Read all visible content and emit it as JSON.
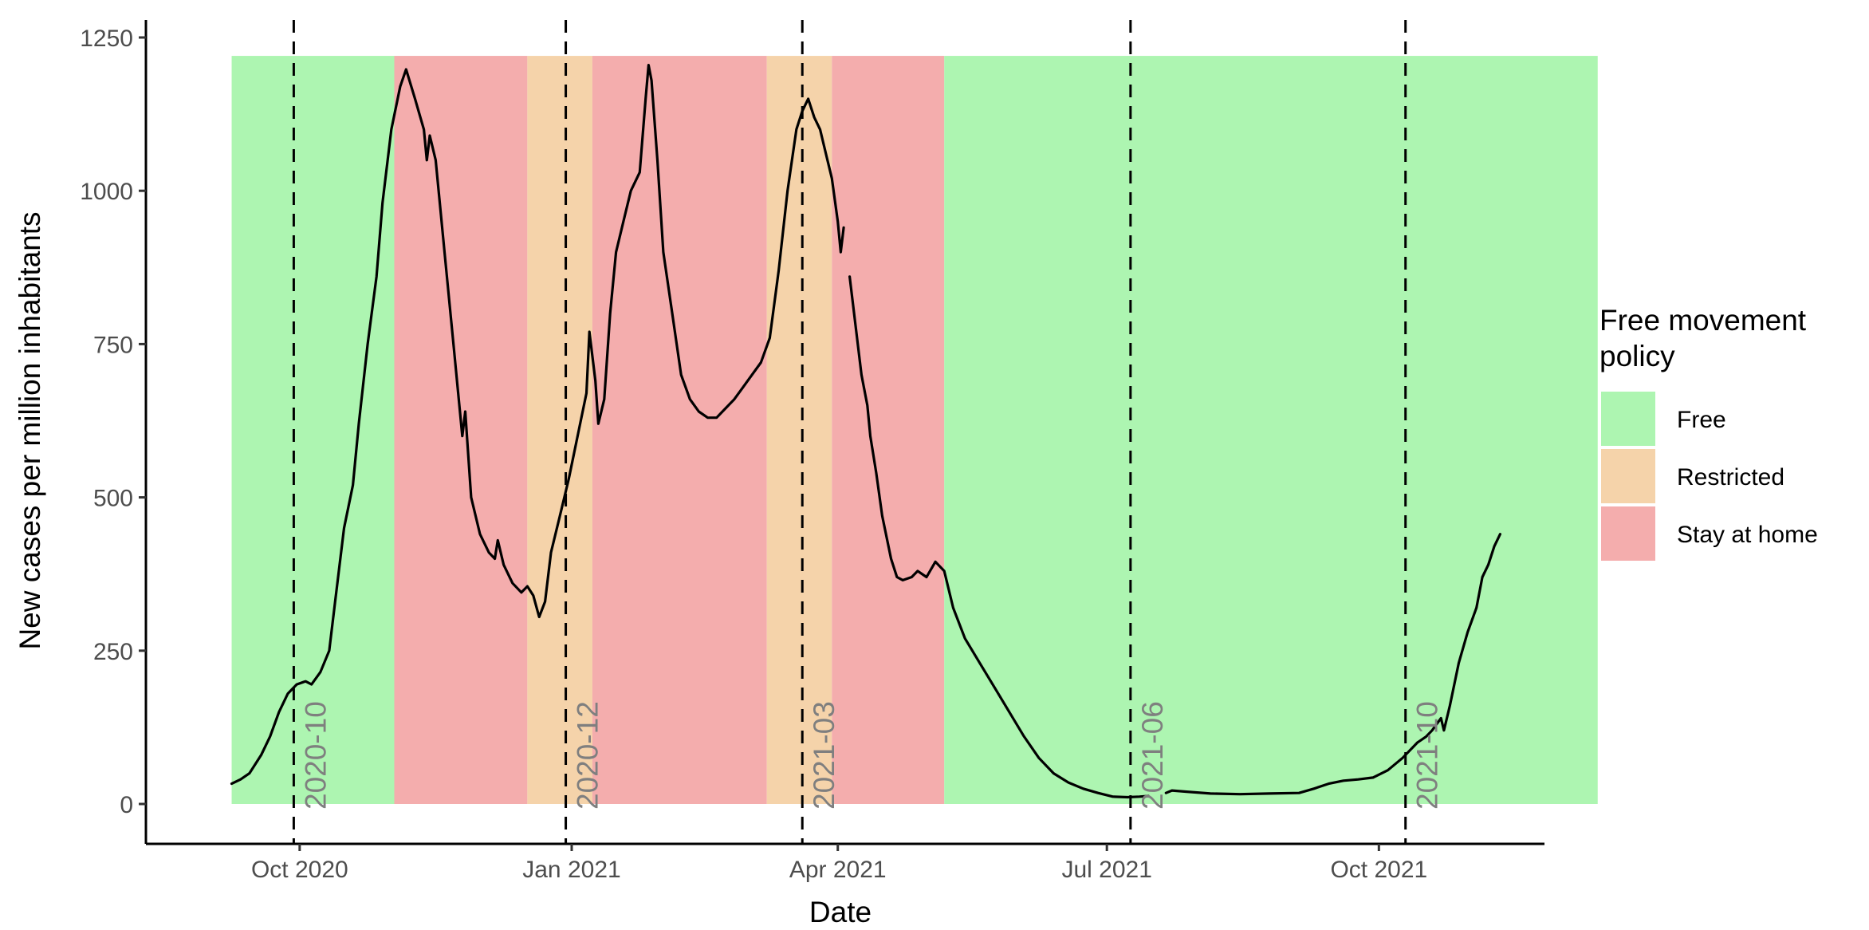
{
  "chart_data": {
    "type": "line",
    "title": "",
    "xlabel": "Date",
    "ylabel": "New cases per million inhabitants",
    "ylim": [
      0,
      1250
    ],
    "xlim": [
      "2020-08-10",
      "2021-11-26"
    ],
    "yticks": [
      0,
      250,
      500,
      750,
      1000,
      1250
    ],
    "xticks": [
      {
        "date": "2020-10-01",
        "label": "Oct 2020"
      },
      {
        "date": "2021-01-01",
        "label": "Jan 2021"
      },
      {
        "date": "2021-04-01",
        "label": "Apr 2021"
      },
      {
        "date": "2021-07-01",
        "label": "Jul 2021"
      },
      {
        "date": "2021-10-01",
        "label": "Oct 2021"
      }
    ],
    "grid": false,
    "legend": {
      "title": "Free movement policy",
      "position": "right",
      "entries": [
        {
          "label": "Free",
          "color": "#adf5b1"
        },
        {
          "label": "Restricted",
          "color": "#f5d3aa"
        },
        {
          "label": "Stay at home",
          "color": "#f4adad"
        }
      ]
    },
    "policy_periods": [
      {
        "start": "2020-09-08",
        "end": "2020-11-02",
        "policy": "Free"
      },
      {
        "start": "2020-11-02",
        "end": "2020-12-17",
        "policy": "Stay at home"
      },
      {
        "start": "2020-12-17",
        "end": "2021-01-08",
        "policy": "Restricted"
      },
      {
        "start": "2021-01-08",
        "end": "2021-03-08",
        "policy": "Stay at home"
      },
      {
        "start": "2021-03-08",
        "end": "2021-03-30",
        "policy": "Restricted"
      },
      {
        "start": "2021-03-30",
        "end": "2021-05-07",
        "policy": "Stay at home"
      },
      {
        "start": "2021-05-07",
        "end": "2021-12-14",
        "policy": "Free"
      }
    ],
    "band_ymax": 1220,
    "vertical_lines": [
      {
        "date": "2020-09-29",
        "label": "2020-10"
      },
      {
        "date": "2020-12-30",
        "label": "2020-12"
      },
      {
        "date": "2021-03-20",
        "label": "2021-03"
      },
      {
        "date": "2021-07-09",
        "label": "2021-06"
      },
      {
        "date": "2021-10-10",
        "label": "2021-10"
      }
    ],
    "series": [
      {
        "segments": [
          [
            [
              "2020-09-08",
              33
            ],
            [
              "2020-09-11",
              40
            ],
            [
              "2020-09-14",
              50
            ],
            [
              "2020-09-18",
              80
            ],
            [
              "2020-09-21",
              110
            ],
            [
              "2020-09-24",
              150
            ],
            [
              "2020-09-27",
              180
            ],
            [
              "2020-09-30",
              195
            ],
            [
              "2020-10-03",
              200
            ],
            [
              "2020-10-05",
              195
            ],
            [
              "2020-10-08",
              215
            ],
            [
              "2020-10-11",
              250
            ],
            [
              "2020-10-13",
              330
            ],
            [
              "2020-10-16",
              450
            ],
            [
              "2020-10-19",
              520
            ],
            [
              "2020-10-21",
              620
            ],
            [
              "2020-10-24",
              750
            ],
            [
              "2020-10-27",
              860
            ],
            [
              "2020-10-29",
              980
            ],
            [
              "2020-11-01",
              1100
            ],
            [
              "2020-11-04",
              1170
            ],
            [
              "2020-11-06",
              1198
            ],
            [
              "2020-11-09",
              1150
            ],
            [
              "2020-11-12",
              1100
            ],
            [
              "2020-11-13",
              1050
            ],
            [
              "2020-11-14",
              1090
            ],
            [
              "2020-11-16",
              1050
            ],
            [
              "2020-11-19",
              900
            ],
            [
              "2020-11-22",
              750
            ],
            [
              "2020-11-24",
              650
            ],
            [
              "2020-11-25",
              600
            ],
            [
              "2020-11-26",
              640
            ],
            [
              "2020-11-28",
              500
            ],
            [
              "2020-12-01",
              440
            ],
            [
              "2020-12-04",
              410
            ],
            [
              "2020-12-06",
              400
            ],
            [
              "2020-12-07",
              430
            ],
            [
              "2020-12-09",
              390
            ],
            [
              "2020-12-12",
              360
            ],
            [
              "2020-12-15",
              345
            ],
            [
              "2020-12-17",
              355
            ],
            [
              "2020-12-19",
              340
            ],
            [
              "2020-12-21",
              305
            ],
            [
              "2020-12-23",
              330
            ],
            [
              "2020-12-25",
              410
            ],
            [
              "2020-12-28",
              470
            ],
            [
              "2020-12-31",
              530
            ],
            [
              "2021-01-03",
              600
            ],
            [
              "2021-01-06",
              670
            ],
            [
              "2021-01-07",
              770
            ],
            [
              "2021-01-09",
              690
            ],
            [
              "2021-01-10",
              620
            ],
            [
              "2021-01-12",
              660
            ],
            [
              "2021-01-14",
              800
            ],
            [
              "2021-01-16",
              900
            ],
            [
              "2021-01-19",
              960
            ],
            [
              "2021-01-21",
              1000
            ],
            [
              "2021-01-24",
              1030
            ],
            [
              "2021-01-26",
              1150
            ],
            [
              "2021-01-27",
              1205
            ],
            [
              "2021-01-28",
              1180
            ],
            [
              "2021-01-30",
              1050
            ],
            [
              "2021-02-01",
              900
            ],
            [
              "2021-02-04",
              800
            ],
            [
              "2021-02-07",
              700
            ],
            [
              "2021-02-10",
              660
            ],
            [
              "2021-02-13",
              640
            ],
            [
              "2021-02-16",
              630
            ],
            [
              "2021-02-19",
              630
            ],
            [
              "2021-02-22",
              645
            ],
            [
              "2021-02-25",
              660
            ],
            [
              "2021-02-28",
              680
            ],
            [
              "2021-03-03",
              700
            ],
            [
              "2021-03-06",
              720
            ],
            [
              "2021-03-09",
              760
            ],
            [
              "2021-03-12",
              870
            ],
            [
              "2021-03-15",
              1000
            ],
            [
              "2021-03-18",
              1100
            ],
            [
              "2021-03-20",
              1130
            ],
            [
              "2021-03-22",
              1150
            ],
            [
              "2021-03-24",
              1120
            ],
            [
              "2021-03-26",
              1100
            ],
            [
              "2021-03-28",
              1060
            ],
            [
              "2021-03-30",
              1020
            ],
            [
              "2021-04-01",
              950
            ],
            [
              "2021-04-02",
              900
            ],
            [
              "2021-04-03",
              940
            ]
          ],
          [
            [
              "2021-04-05",
              860
            ],
            [
              "2021-04-07",
              780
            ],
            [
              "2021-04-09",
              700
            ],
            [
              "2021-04-11",
              650
            ],
            [
              "2021-04-12",
              600
            ],
            [
              "2021-04-14",
              540
            ],
            [
              "2021-04-16",
              470
            ],
            [
              "2021-04-19",
              400
            ],
            [
              "2021-04-21",
              370
            ],
            [
              "2021-04-23",
              365
            ],
            [
              "2021-04-26",
              370
            ],
            [
              "2021-04-28",
              380
            ],
            [
              "2021-05-01",
              370
            ],
            [
              "2021-05-04",
              395
            ],
            [
              "2021-05-07",
              380
            ],
            [
              "2021-05-10",
              320
            ],
            [
              "2021-05-14",
              270
            ],
            [
              "2021-05-19",
              230
            ],
            [
              "2021-05-24",
              190
            ],
            [
              "2021-05-29",
              150
            ],
            [
              "2021-06-03",
              110
            ],
            [
              "2021-06-08",
              75
            ],
            [
              "2021-06-13",
              50
            ],
            [
              "2021-06-18",
              35
            ],
            [
              "2021-06-23",
              25
            ],
            [
              "2021-06-28",
              18
            ],
            [
              "2021-07-03",
              12
            ],
            [
              "2021-07-08",
              11
            ],
            [
              "2021-07-12",
              12
            ],
            [
              "2021-07-15",
              13
            ]
          ],
          [
            [
              "2021-07-21",
              18
            ],
            [
              "2021-07-23",
              22
            ],
            [
              "2021-07-28",
              20
            ],
            [
              "2021-08-05",
              17
            ],
            [
              "2021-08-15",
              16
            ],
            [
              "2021-08-25",
              17
            ],
            [
              "2021-09-04",
              18
            ],
            [
              "2021-09-09",
              25
            ],
            [
              "2021-09-14",
              33
            ],
            [
              "2021-09-19",
              38
            ],
            [
              "2021-09-24",
              40
            ],
            [
              "2021-09-29",
              43
            ],
            [
              "2021-10-04",
              55
            ],
            [
              "2021-10-09",
              75
            ],
            [
              "2021-10-14",
              100
            ],
            [
              "2021-10-17",
              110
            ],
            [
              "2021-10-19",
              120
            ],
            [
              "2021-10-22",
              140
            ],
            [
              "2021-10-23",
              120
            ],
            [
              "2021-10-25",
              160
            ],
            [
              "2021-10-28",
              230
            ],
            [
              "2021-10-31",
              280
            ],
            [
              "2021-11-03",
              320
            ],
            [
              "2021-11-05",
              370
            ],
            [
              "2021-11-07",
              390
            ],
            [
              "2021-11-09",
              420
            ],
            [
              "2021-11-11",
              440
            ]
          ]
        ]
      }
    ]
  }
}
